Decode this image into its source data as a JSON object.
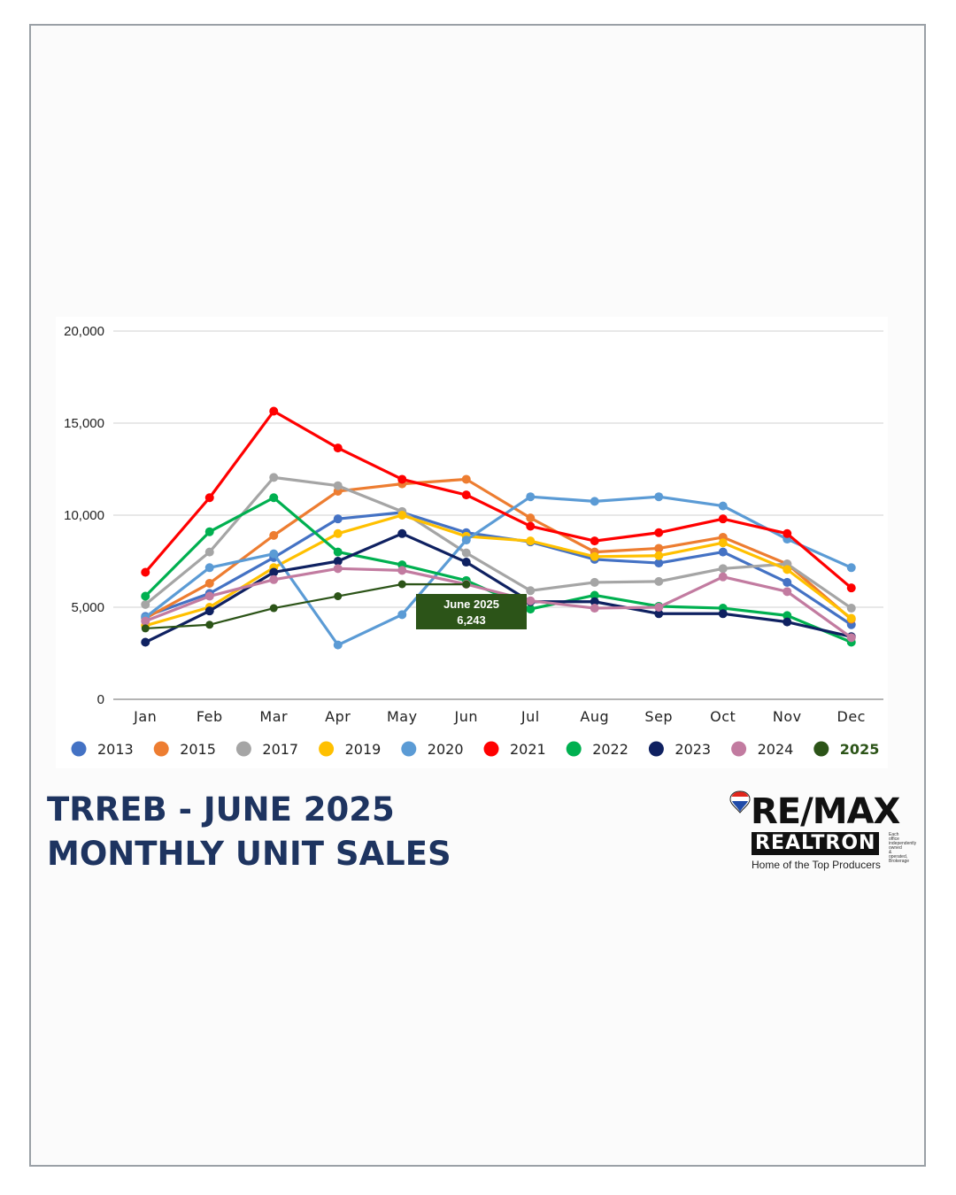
{
  "title_lines": [
    "TRREB - JUNE 2025",
    "MONTHLY UNIT SALES"
  ],
  "logo": {
    "brand": "RE/MAX",
    "name": "REALTRON",
    "tagline": "Home of the Top Producers",
    "fine": "Each office independently owned & operated, Brokerage"
  },
  "chart_data": {
    "type": "line",
    "categories": [
      "Jan",
      "Feb",
      "Mar",
      "Apr",
      "May",
      "Jun",
      "Jul",
      "Aug",
      "Sep",
      "Oct",
      "Nov",
      "Dec"
    ],
    "ylim": [
      0,
      20000
    ],
    "yticks": [
      0,
      5000,
      10000,
      15000,
      20000
    ],
    "ytick_labels": [
      "0",
      "5,000",
      "10,000",
      "15,000",
      "20,000"
    ],
    "grid": true,
    "legend_placement": "bottom",
    "annotation": {
      "lines": [
        "June 2025",
        "6,243"
      ],
      "series": "2025",
      "category": "Jun",
      "bg": "#2c5418"
    },
    "series": [
      {
        "name": "2013",
        "color": "#4472c4",
        "bold": false,
        "values": [
          4500,
          5750,
          7700,
          9800,
          10150,
          9050,
          8550,
          7600,
          7400,
          8000,
          6350,
          4050
        ]
      },
      {
        "name": "2015",
        "color": "#ed7d31",
        "bold": false,
        "values": [
          4400,
          6300,
          8900,
          11300,
          11700,
          11950,
          9850,
          8000,
          8200,
          8800,
          7350,
          4350
        ]
      },
      {
        "name": "2017",
        "color": "#a5a5a5",
        "bold": false,
        "values": [
          5150,
          8000,
          12050,
          11600,
          10200,
          7950,
          5900,
          6350,
          6400,
          7100,
          7350,
          4950
        ]
      },
      {
        "name": "2019",
        "color": "#ffc000",
        "bold": false,
        "values": [
          4000,
          5000,
          7150,
          9000,
          10000,
          8850,
          8600,
          7750,
          7800,
          8500,
          7050,
          4400
        ]
      },
      {
        "name": "2020",
        "color": "#5b9bd5",
        "bold": false,
        "values": [
          4450,
          7150,
          7900,
          2950,
          4600,
          8650,
          11000,
          10750,
          11000,
          10500,
          8700,
          7150
        ]
      },
      {
        "name": "2021",
        "color": "#ff0000",
        "bold": false,
        "values": [
          6900,
          10950,
          15650,
          13650,
          11950,
          11100,
          9400,
          8600,
          9050,
          9800,
          9000,
          6050
        ]
      },
      {
        "name": "2022",
        "color": "#00b050",
        "bold": false,
        "values": [
          5600,
          9100,
          10950,
          8000,
          7300,
          6450,
          4900,
          5650,
          5050,
          4950,
          4550,
          3100
        ]
      },
      {
        "name": "2023",
        "color": "#0f2161",
        "bold": false,
        "values": [
          3100,
          4800,
          6900,
          7500,
          9000,
          7450,
          5300,
          5300,
          4650,
          4650,
          4200,
          3400
        ]
      },
      {
        "name": "2024",
        "color": "#c27ba0",
        "bold": false,
        "values": [
          4250,
          5600,
          6500,
          7100,
          7000,
          6250,
          5350,
          4950,
          5000,
          6650,
          5850,
          3350
        ]
      },
      {
        "name": "2025",
        "color": "#2c5418",
        "bold": true,
        "values": [
          3850,
          4050,
          4950,
          5600,
          6250,
          6243,
          null,
          null,
          null,
          null,
          null,
          null
        ]
      }
    ]
  }
}
